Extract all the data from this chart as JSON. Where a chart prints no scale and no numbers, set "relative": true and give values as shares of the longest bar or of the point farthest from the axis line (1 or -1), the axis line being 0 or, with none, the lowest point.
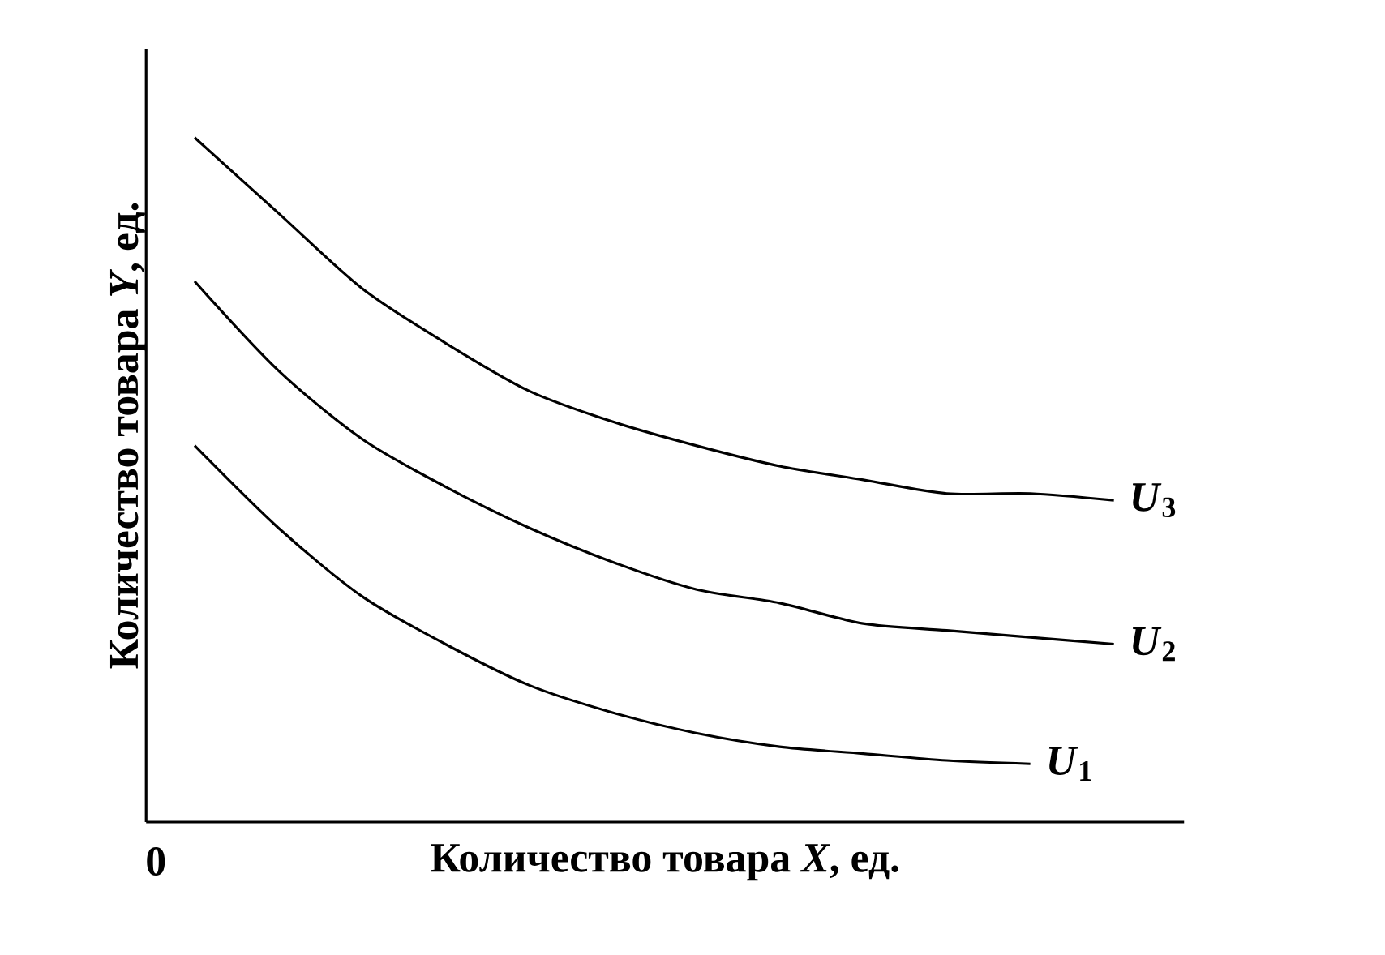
{
  "chart_data": {
    "type": "line",
    "relative": true,
    "xlabel": "Количество товара *X*, ед.",
    "ylabel": "Количество товара *Y*, ед.",
    "annotations": [
      "0"
    ],
    "categories": [
      null,
      null,
      null,
      null,
      null,
      null,
      null,
      null,
      null,
      null,
      null,
      null
    ],
    "series": [
      {
        "name": "*U*$_{3}$",
        "color": "#000000",
        "values": [
          1.0,
          0.89,
          0.78,
          0.7,
          0.63,
          0.585,
          0.55,
          0.52,
          0.5,
          0.48,
          0.48,
          0.47
        ]
      },
      {
        "name": "*U*$_{2}$",
        "color": "#000000",
        "values": [
          0.79,
          0.66,
          0.56,
          0.49,
          0.43,
          0.38,
          0.34,
          0.32,
          0.29,
          0.28,
          0.27,
          0.26
        ]
      },
      {
        "name": "*U*$_{1}$",
        "color": "#000000",
        "values": [
          0.55,
          0.43,
          0.33,
          0.26,
          0.2,
          0.16,
          0.13,
          0.11,
          0.1,
          0.09,
          0.085,
          null
        ]
      }
    ]
  }
}
